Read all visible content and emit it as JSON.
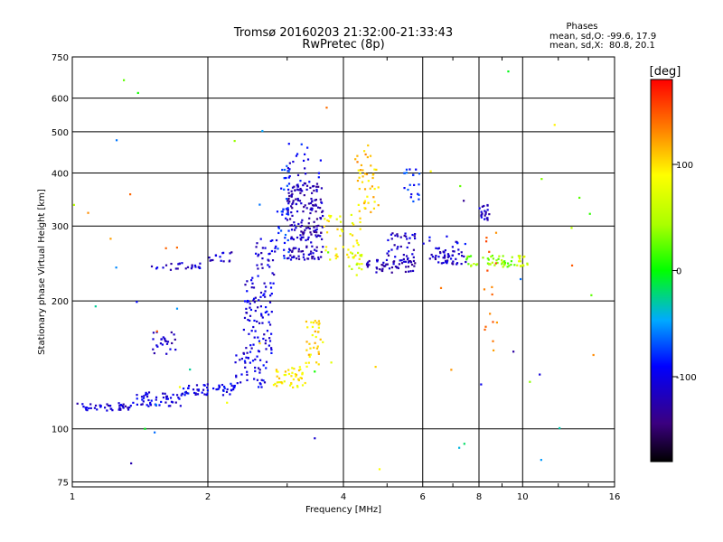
{
  "chart_data": {
    "type": "scatter",
    "title": "Tromsø 20160203 21:32:00-21:33:43",
    "subtitle": "RwPretec (8p)",
    "xlabel": "Frequency [MHz]",
    "ylabel": "Stationary phase Virtual Height [km]",
    "x_scale": "log",
    "y_scale": "log",
    "xlim": [
      1,
      16
    ],
    "ylim": [
      73,
      750
    ],
    "x_ticks": [
      1,
      2,
      4,
      6,
      8,
      10,
      16
    ],
    "x_tick_labels": [
      "1",
      "2",
      "4",
      "6",
      "8",
      "10",
      "16"
    ],
    "y_ticks": [
      75,
      100,
      200,
      300,
      400,
      500,
      600,
      750
    ],
    "y_tick_labels": [
      "75",
      "100",
      "200",
      "300",
      "400",
      "500",
      "600",
      "750"
    ],
    "grid": true,
    "colorbar": {
      "title": "[deg]",
      "range": [
        -180,
        180
      ],
      "ticks": [
        100,
        0,
        -100
      ],
      "tick_labels": [
        "100",
        "0",
        "-100"
      ]
    },
    "info_box": {
      "title": "Phases",
      "line1": "mean, sd,O: -99.6, 17.9",
      "line2": "mean, sd,X:  80.8, 20.1"
    },
    "groups": [
      {
        "x": [
          1.0,
          1.35
        ],
        "y": [
          110,
          115
        ],
        "phase": -110,
        "n": 45
      },
      {
        "x": [
          1.35,
          1.75
        ],
        "y": [
          113,
          122
        ],
        "phase": -105,
        "n": 50
      },
      {
        "x": [
          1.75,
          2.3
        ],
        "y": [
          120,
          128
        ],
        "phase": -100,
        "n": 55
      },
      {
        "x": [
          2.3,
          2.7
        ],
        "y": [
          125,
          150
        ],
        "phase": -100,
        "n": 40
      },
      {
        "x": [
          2.4,
          2.8
        ],
        "y": [
          150,
          230
        ],
        "phase": -105,
        "n": 90
      },
      {
        "x": [
          2.55,
          2.85
        ],
        "y": [
          230,
          280
        ],
        "phase": -110,
        "n": 30
      },
      {
        "x": [
          1.5,
          1.7
        ],
        "y": [
          150,
          170
        ],
        "phase": -115,
        "n": 25
      },
      {
        "x": [
          1.5,
          1.95
        ],
        "y": [
          236,
          246
        ],
        "phase": -110,
        "n": 25
      },
      {
        "x": [
          2.0,
          2.3
        ],
        "y": [
          240,
          262
        ],
        "phase": -115,
        "n": 15
      },
      {
        "x": [
          3.0,
          3.6
        ],
        "y": [
          250,
          380
        ],
        "phase": -120,
        "n": 200
      },
      {
        "x": [
          3.0,
          3.6
        ],
        "y": [
          380,
          470
        ],
        "phase": -100,
        "n": 20
      },
      {
        "x": [
          2.85,
          3.05
        ],
        "y": [
          250,
          420
        ],
        "phase": -80,
        "n": 40
      },
      {
        "x": [
          2.8,
          3.3
        ],
        "y": [
          125,
          140
        ],
        "phase": 95,
        "n": 45
      },
      {
        "x": [
          3.3,
          3.6
        ],
        "y": [
          140,
          180
        ],
        "phase": 100,
        "n": 35
      },
      {
        "x": [
          3.6,
          4.4
        ],
        "y": [
          250,
          320
        ],
        "phase": 90,
        "n": 45
      },
      {
        "x": [
          4.3,
          4.8
        ],
        "y": [
          320,
          410
        ],
        "phase": 105,
        "n": 35
      },
      {
        "x": [
          4.2,
          4.6
        ],
        "y": [
          410,
          470
        ],
        "phase": 115,
        "n": 10
      },
      {
        "x": [
          4.1,
          4.4
        ],
        "y": [
          230,
          260
        ],
        "phase": 60,
        "n": 15
      },
      {
        "x": [
          4.4,
          5.8
        ],
        "y": [
          232,
          250
        ],
        "phase": -120,
        "n": 55
      },
      {
        "x": [
          5.0,
          5.8
        ],
        "y": [
          250,
          290
        ],
        "phase": -115,
        "n": 35
      },
      {
        "x": [
          5.4,
          5.9
        ],
        "y": [
          340,
          410
        ],
        "phase": -80,
        "n": 20
      },
      {
        "x": [
          6.2,
          7.5
        ],
        "y": [
          244,
          262
        ],
        "phase": -115,
        "n": 45
      },
      {
        "x": [
          6.0,
          7.5
        ],
        "y": [
          262,
          285
        ],
        "phase": -100,
        "n": 15
      },
      {
        "x": [
          7.5,
          9.6
        ],
        "y": [
          240,
          256
        ],
        "phase": 35,
        "n": 45
      },
      {
        "x": [
          9.7,
          10.3
        ],
        "y": [
          240,
          256
        ],
        "phase": 60,
        "n": 15
      },
      {
        "x": [
          8.0,
          8.6
        ],
        "y": [
          310,
          340
        ],
        "phase": -115,
        "n": 20
      },
      {
        "x": [
          8.2,
          8.8
        ],
        "y": [
          130,
          290
        ],
        "phase": 140,
        "n": 15
      },
      {
        "x": [
          1.0,
          16.0
        ],
        "y": [
          75,
          700
        ],
        "phase": 0,
        "n": 60,
        "random_phase": true
      }
    ]
  }
}
